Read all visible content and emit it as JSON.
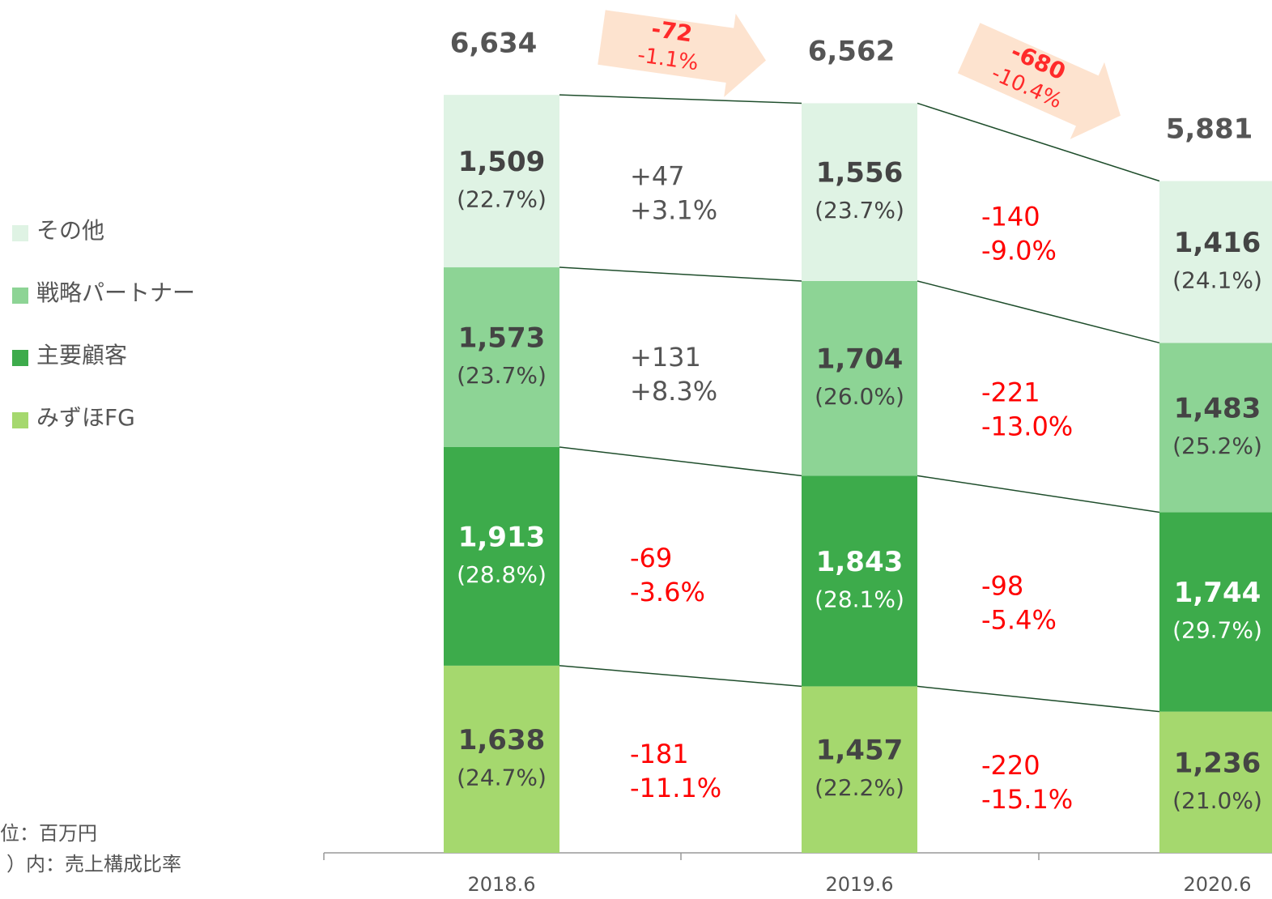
{
  "chart_data": {
    "type": "stacked_bar",
    "categories": [
      "2018.6",
      "2019.6",
      "2020.6"
    ],
    "series": [
      {
        "name": "みずほFG",
        "color": "#a5d86e",
        "values": [
          1638,
          1457,
          1236
        ],
        "value_labels": [
          "1,638",
          "1,457",
          "1,236"
        ],
        "share_labels": [
          "(24.7%)",
          "(22.2%)",
          "(21.0%)"
        ],
        "changes": [
          [
            "-181",
            "-11.1%"
          ],
          [
            "-220",
            "-15.1%"
          ]
        ]
      },
      {
        "name": "主要顧客",
        "color": "#3dab4b",
        "values": [
          1913,
          1843,
          1744
        ],
        "value_labels": [
          "1,913",
          "1,843",
          "1,744"
        ],
        "share_labels": [
          "(28.8%)",
          "(28.1%)",
          "(29.7%)"
        ],
        "changes": [
          [
            "-69",
            "-3.6%"
          ],
          [
            "-98",
            "-5.4%"
          ]
        ]
      },
      {
        "name": "戦略パートナー",
        "color": "#8dd495",
        "values": [
          1573,
          1704,
          1483
        ],
        "value_labels": [
          "1,573",
          "1,704",
          "1,483"
        ],
        "share_labels": [
          "(23.7%)",
          "(26.0%)",
          "(25.2%)"
        ],
        "changes": [
          [
            "+131",
            "+8.3%"
          ],
          [
            "-221",
            "-13.0%"
          ]
        ]
      },
      {
        "name": "その他",
        "color": "#dff3e4",
        "values": [
          1509,
          1556,
          1416
        ],
        "value_labels": [
          "1,509",
          "1,556",
          "1,416"
        ],
        "share_labels": [
          "(22.7%)",
          "(23.7%)",
          "(24.1%)"
        ],
        "changes": [
          [
            "+47",
            "+3.1%"
          ],
          [
            "-140",
            "-9.0%"
          ]
        ]
      }
    ],
    "totals": [
      6634,
      6562,
      5881
    ],
    "total_labels": [
      "6,634",
      "6,562",
      "5,881"
    ],
    "total_changes": [
      [
        "-72",
        "-1.1%"
      ],
      [
        "-680",
        "-10.4%"
      ]
    ],
    "notes": [
      "位：百万円",
      "）内：売上構成比率"
    ]
  }
}
